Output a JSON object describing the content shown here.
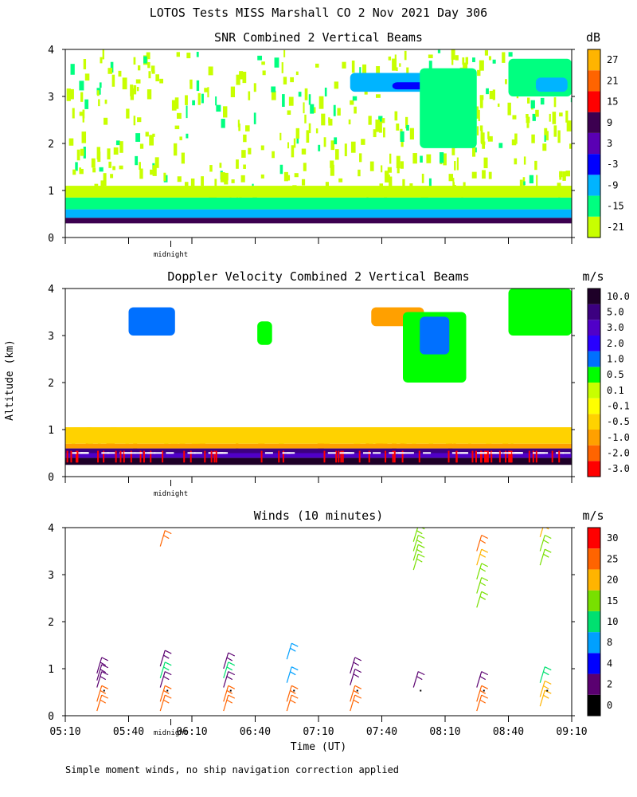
{
  "figure": {
    "title": "LOTOS Tests MISS Marshall CO   2 Nov 2021 Day 306",
    "footnote": "Simple moment winds, no ship navigation correction applied",
    "midnight_label": "midnight",
    "xlabel": "Time (UT)",
    "ylabel": "Altitude (km)"
  },
  "time_axis": {
    "ticks": [
      "05:10",
      "05:40",
      "06:10",
      "06:40",
      "07:10",
      "07:40",
      "08:10",
      "08:40",
      "09:10"
    ],
    "tick_minutes": [
      310,
      340,
      370,
      400,
      430,
      460,
      490,
      520,
      550
    ],
    "range_minutes": [
      310,
      550
    ],
    "midnight_minutes": 360
  },
  "colors": {
    "snr": [
      "#c8ff00",
      "#00ff80",
      "#00b4ff",
      "#0000ff",
      "#5a00b4",
      "#3c0050",
      "#ff0000",
      "#ff6400",
      "#ffb400"
    ],
    "doppler": [
      "#ff0000",
      "#ff6400",
      "#ffa000",
      "#ffd200",
      "#ffff00",
      "#c8ff00",
      "#00ff00",
      "#0070ff",
      "#2800ff",
      "#5000c8",
      "#3c0080",
      "#1e0028"
    ],
    "wind": [
      "#000000",
      "#5a0070",
      "#0000ff",
      "#00a0ff",
      "#00e070",
      "#78e000",
      "#ffb400",
      "#ff6400",
      "#ff0000"
    ]
  },
  "chart_data": [
    {
      "type": "heatmap",
      "title": "SNR Combined 2 Vertical Beams",
      "ylabel": "Altitude (km)",
      "ylim": [
        0,
        4
      ],
      "yticks": [
        "0",
        "1",
        "2",
        "3",
        "4"
      ],
      "xlim": [
        310,
        550
      ],
      "colorbar": {
        "unit": "dB",
        "labels": [
          "-21",
          "-15",
          "-9",
          "-3",
          "3",
          "9",
          "15",
          "21",
          "27"
        ],
        "bins": [
          -21,
          -15,
          -9,
          -3,
          3,
          9,
          15,
          21,
          27
        ]
      },
      "layers": [
        {
          "t0": 310,
          "t1": 550,
          "alt0": 0.3,
          "alt1": 0.42,
          "snr": 9
        },
        {
          "t0": 310,
          "t1": 550,
          "alt0": 0.42,
          "alt1": 0.6,
          "snr": -9
        },
        {
          "t0": 310,
          "t1": 550,
          "alt0": 0.6,
          "alt1": 0.85,
          "snr": -15
        },
        {
          "t0": 310,
          "t1": 550,
          "alt0": 0.85,
          "alt1": 1.1,
          "snr": -21
        }
      ],
      "features": [
        {
          "t0": 445,
          "t1": 495,
          "alt0": 3.1,
          "alt1": 3.5,
          "snr": -9
        },
        {
          "t0": 465,
          "t1": 490,
          "alt0": 3.15,
          "alt1": 3.3,
          "snr": -3
        },
        {
          "t0": 480,
          "t1": 496,
          "alt0": 2.2,
          "alt1": 3.1,
          "snr": -9
        },
        {
          "t0": 486,
          "t1": 492,
          "alt0": 2.3,
          "alt1": 2.6,
          "snr": -3
        },
        {
          "t0": 478,
          "t1": 505,
          "alt0": 1.9,
          "alt1": 3.6,
          "snr": -15
        },
        {
          "t0": 520,
          "t1": 550,
          "alt0": 3.0,
          "alt1": 3.8,
          "snr": -15
        },
        {
          "t0": 533,
          "t1": 548,
          "alt0": 3.1,
          "alt1": 3.4,
          "snr": -9
        }
      ]
    },
    {
      "type": "heatmap",
      "title": "Doppler Velocity Combined 2 Vertical Beams",
      "ylabel": "Altitude (km)",
      "ylim": [
        0,
        4
      ],
      "yticks": [
        "0",
        "1",
        "2",
        "3",
        "4"
      ],
      "xlim": [
        310,
        550
      ],
      "colorbar": {
        "unit": "m/s",
        "labels": [
          "-3.0",
          "-2.0",
          "-1.0",
          "-0.5",
          "-0.1",
          "0.1",
          "0.5",
          "1.0",
          "2.0",
          "3.0",
          "5.0",
          "10.0"
        ],
        "bins": [
          -3,
          -2,
          -1,
          -0.5,
          -0.1,
          0.1,
          0.5,
          1,
          2,
          3,
          5,
          10
        ]
      },
      "layers": [
        {
          "t0": 310,
          "t1": 550,
          "alt0": 0.25,
          "alt1": 0.4,
          "vel": 10
        },
        {
          "t0": 310,
          "t1": 550,
          "alt0": 0.4,
          "alt1": 0.5,
          "vel": 3
        },
        {
          "t0": 310,
          "t1": 550,
          "alt0": 0.5,
          "alt1": 0.6,
          "vel": 5
        },
        {
          "t0": 310,
          "t1": 550,
          "alt0": 0.6,
          "alt1": 0.7,
          "vel": -1
        },
        {
          "t0": 310,
          "t1": 550,
          "alt0": 0.7,
          "alt1": 1.05,
          "vel": -0.5
        }
      ],
      "features": [
        {
          "t0": 340,
          "t1": 362,
          "alt0": 3.0,
          "alt1": 3.6,
          "vel": 1
        },
        {
          "t0": 401,
          "t1": 408,
          "alt0": 2.8,
          "alt1": 3.3,
          "vel": 0.5
        },
        {
          "t0": 455,
          "t1": 480,
          "alt0": 3.2,
          "alt1": 3.6,
          "vel": -1
        },
        {
          "t0": 470,
          "t1": 500,
          "alt0": 2.0,
          "alt1": 3.5,
          "vel": 0.5
        },
        {
          "t0": 478,
          "t1": 492,
          "alt0": 2.6,
          "alt1": 3.4,
          "vel": 1
        },
        {
          "t0": 520,
          "t1": 550,
          "alt0": 3.0,
          "alt1": 4.0,
          "vel": 0.5
        }
      ]
    },
    {
      "type": "scatter",
      "title": "Winds (10 minutes)",
      "ylabel": "Altitude (km)",
      "ylim": [
        0,
        4
      ],
      "yticks": [
        "0",
        "1",
        "2",
        "3",
        "4"
      ],
      "xlim": [
        310,
        550
      ],
      "colorbar": {
        "unit": "m/s",
        "labels": [
          "0",
          "2",
          "4",
          "8",
          "10",
          "15",
          "20",
          "25",
          "30"
        ],
        "bins": [
          0,
          2,
          4,
          8,
          10,
          15,
          20,
          25,
          30
        ]
      },
      "profiles": [
        {
          "t": 325,
          "points": [
            {
              "alt": 0.1,
              "spd": 25
            },
            {
              "alt": 0.3,
              "spd": 25
            },
            {
              "alt": 0.6,
              "spd": 2
            },
            {
              "alt": 0.75,
              "spd": 2
            },
            {
              "alt": 0.9,
              "spd": 2
            }
          ]
        },
        {
          "t": 355,
          "points": [
            {
              "alt": 0.1,
              "spd": 25
            },
            {
              "alt": 0.3,
              "spd": 25
            },
            {
              "alt": 0.6,
              "spd": 2
            },
            {
              "alt": 0.8,
              "spd": 10
            },
            {
              "alt": 1.05,
              "spd": 2
            },
            {
              "alt": 3.6,
              "spd": 25
            }
          ]
        },
        {
          "t": 385,
          "points": [
            {
              "alt": 0.1,
              "spd": 25
            },
            {
              "alt": 0.3,
              "spd": 25
            },
            {
              "alt": 0.6,
              "spd": 2
            },
            {
              "alt": 0.8,
              "spd": 10
            },
            {
              "alt": 1.0,
              "spd": 2
            }
          ]
        },
        {
          "t": 415,
          "points": [
            {
              "alt": 0.1,
              "spd": 25
            },
            {
              "alt": 0.3,
              "spd": 25
            },
            {
              "alt": 0.7,
              "spd": 8
            },
            {
              "alt": 1.2,
              "spd": 8
            }
          ]
        },
        {
          "t": 445,
          "points": [
            {
              "alt": 0.1,
              "spd": 25
            },
            {
              "alt": 0.3,
              "spd": 25
            },
            {
              "alt": 0.65,
              "spd": 2
            },
            {
              "alt": 0.9,
              "spd": 2
            }
          ]
        },
        {
          "t": 475,
          "points": [
            {
              "alt": 0.6,
              "spd": 2
            },
            {
              "alt": 3.1,
              "spd": 15
            },
            {
              "alt": 3.3,
              "spd": 15
            },
            {
              "alt": 3.5,
              "spd": 15
            },
            {
              "alt": 3.7,
              "spd": 15
            }
          ]
        },
        {
          "t": 505,
          "points": [
            {
              "alt": 0.1,
              "spd": 25
            },
            {
              "alt": 0.3,
              "spd": 25
            },
            {
              "alt": 0.6,
              "spd": 2
            },
            {
              "alt": 2.3,
              "spd": 15
            },
            {
              "alt": 2.6,
              "spd": 15
            },
            {
              "alt": 2.9,
              "spd": 15
            },
            {
              "alt": 3.2,
              "spd": 20
            },
            {
              "alt": 3.5,
              "spd": 25
            }
          ]
        },
        {
          "t": 535,
          "points": [
            {
              "alt": 0.2,
              "spd": 20
            },
            {
              "alt": 0.4,
              "spd": 20
            },
            {
              "alt": 0.7,
              "spd": 10
            },
            {
              "alt": 3.2,
              "spd": 15
            },
            {
              "alt": 3.5,
              "spd": 15
            },
            {
              "alt": 3.8,
              "spd": 20
            },
            {
              "alt": 4.0,
              "spd": 25
            }
          ]
        }
      ]
    }
  ]
}
